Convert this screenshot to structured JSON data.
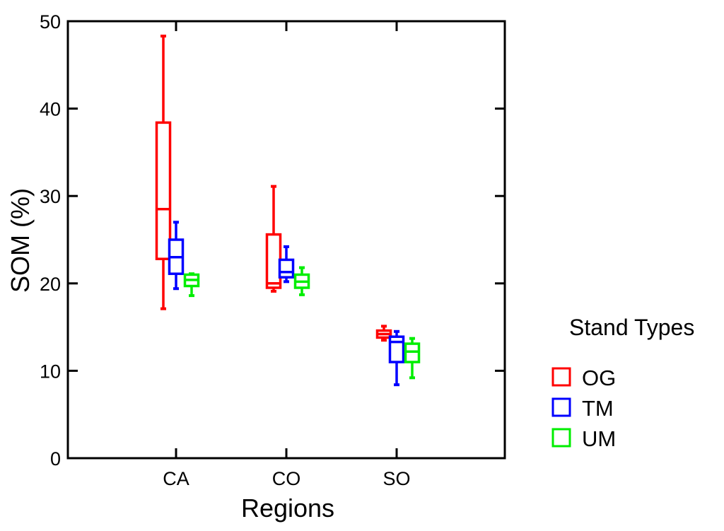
{
  "chart_data": {
    "type": "box",
    "title": "",
    "xlabel": "Regions",
    "ylabel": "SOM (%)",
    "ylim": [
      0,
      50
    ],
    "yticks": [
      0,
      10,
      20,
      30,
      40,
      50
    ],
    "grid": false,
    "categories": [
      "CA",
      "CO",
      "SO"
    ],
    "legend": {
      "title": "Stand Types",
      "position": "right"
    },
    "series": [
      {
        "name": "OG",
        "color": "#ff0000",
        "boxes": [
          {
            "category": "CA",
            "min": 17.1,
            "q1": 22.8,
            "median": 28.5,
            "q3": 38.4,
            "max": 48.3
          },
          {
            "category": "CO",
            "min": 19.1,
            "q1": 19.5,
            "median": 20.0,
            "q3": 25.6,
            "max": 31.1
          },
          {
            "category": "SO",
            "min": 13.5,
            "q1": 13.8,
            "median": 14.2,
            "q3": 14.6,
            "max": 15.1
          }
        ]
      },
      {
        "name": "TM",
        "color": "#0000ff",
        "boxes": [
          {
            "category": "CA",
            "min": 19.4,
            "q1": 21.1,
            "median": 23.0,
            "q3": 25.0,
            "max": 27.0
          },
          {
            "category": "CO",
            "min": 20.2,
            "q1": 20.7,
            "median": 21.3,
            "q3": 22.7,
            "max": 24.2
          },
          {
            "category": "SO",
            "min": 8.4,
            "q1": 11.0,
            "median": 13.3,
            "q3": 13.9,
            "max": 14.5
          }
        ]
      },
      {
        "name": "UM",
        "color": "#00ee00",
        "boxes": [
          {
            "category": "CA",
            "min": 18.6,
            "q1": 19.7,
            "median": 20.4,
            "q3": 21.0,
            "max": 21.1
          },
          {
            "category": "CO",
            "min": 18.7,
            "q1": 19.5,
            "median": 20.2,
            "q3": 21.0,
            "max": 21.8
          },
          {
            "category": "SO",
            "min": 9.2,
            "q1": 11.0,
            "median": 12.2,
            "q3": 13.1,
            "max": 13.7
          }
        ]
      }
    ]
  }
}
